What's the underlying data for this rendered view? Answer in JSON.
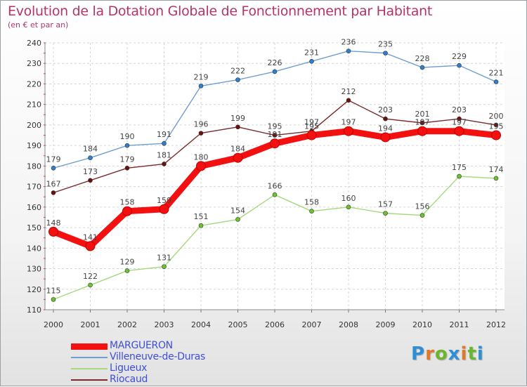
{
  "title": "Evolution de la Dotation Globale de Fonctionnement par Habitant",
  "subtitle": "(en € et par an)",
  "brand": {
    "letters": [
      "P",
      "r",
      "o",
      "x",
      "i",
      "t",
      "i"
    ],
    "colors": [
      "#2e8fd6",
      "#e0782a",
      "#6bb62e",
      "#2e8fd6",
      "#e0782a",
      "#6bb62e",
      "#2e8fd6"
    ]
  },
  "chart_data": {
    "type": "line",
    "title": "Evolution de la Dotation Globale de Fonctionnement par Habitant",
    "subtitle": "(en € et par an)",
    "x": [
      "2000",
      "2001",
      "2002",
      "2003",
      "2004",
      "2005",
      "2006",
      "2007",
      "2008",
      "2009",
      "2010",
      "2011",
      "2012"
    ],
    "ylim": [
      110,
      240
    ],
    "yticks": [
      110,
      120,
      130,
      140,
      150,
      160,
      170,
      180,
      190,
      200,
      210,
      220,
      230,
      240
    ],
    "grid": true,
    "legend_position": "bottom-left",
    "series": [
      {
        "name": "MARGUERON",
        "color": "#f21010",
        "values": [
          148,
          141,
          158,
          159,
          180,
          184,
          191,
          195,
          197,
          194,
          197,
          197,
          195
        ]
      },
      {
        "name": "Villeneuve-de-Duras",
        "color": "#6f9fd0",
        "values": [
          179,
          184,
          190,
          191,
          219,
          222,
          226,
          231,
          236,
          235,
          228,
          229,
          221
        ]
      },
      {
        "name": "Ligueux",
        "color": "#a6d97e",
        "values": [
          115,
          122,
          129,
          131,
          151,
          154,
          166,
          158,
          160,
          157,
          156,
          175,
          174
        ]
      },
      {
        "name": "Riocaud",
        "color": "#7a2a2a",
        "values": [
          167,
          173,
          179,
          181,
          196,
          199,
          195,
          197,
          212,
          203,
          201,
          203,
          200
        ]
      }
    ]
  }
}
